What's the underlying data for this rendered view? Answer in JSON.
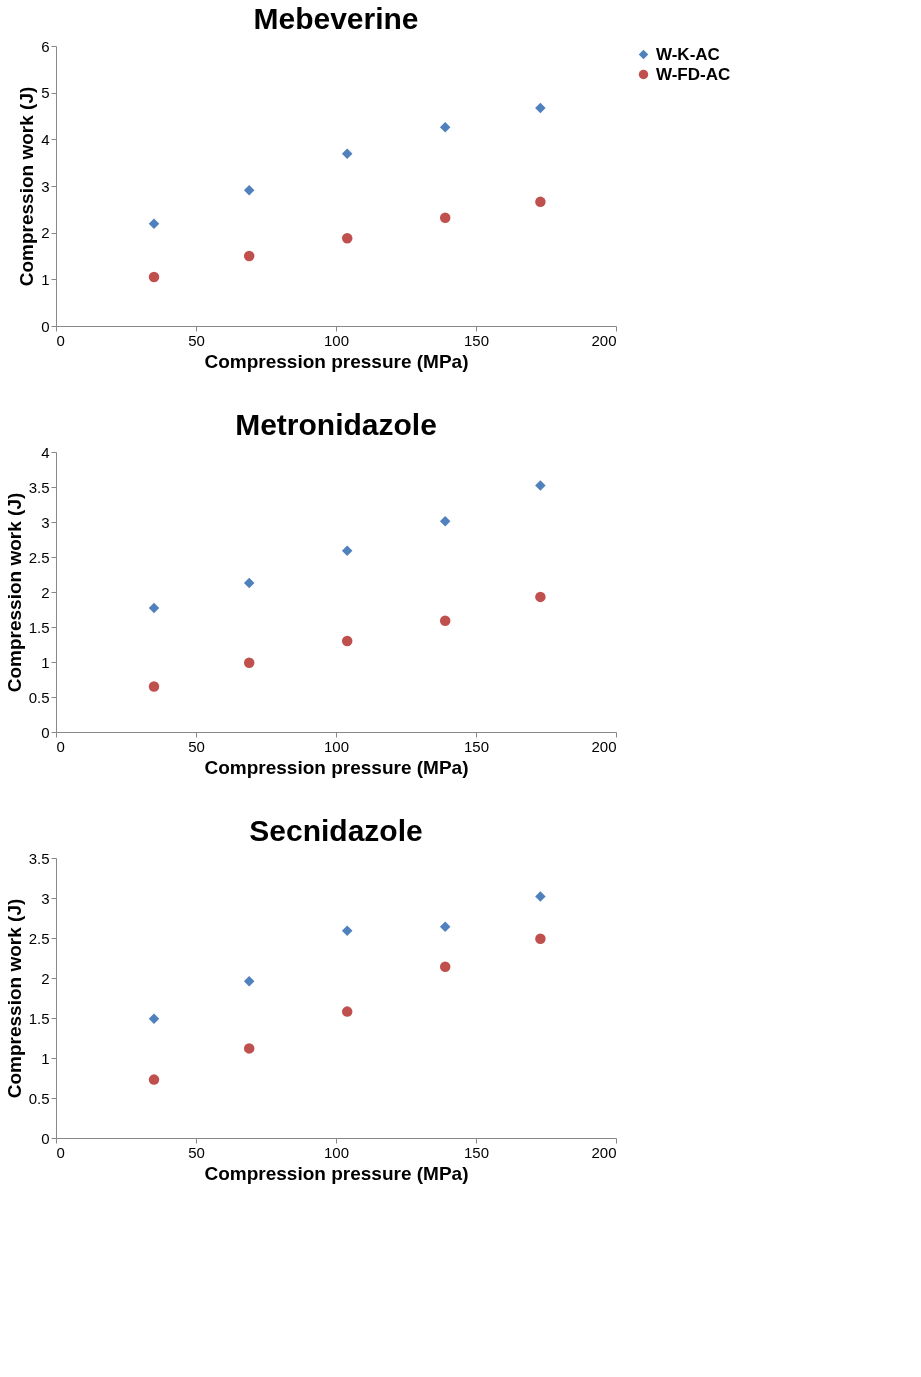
{
  "chart_data": [
    {
      "type": "scatter",
      "title": "Mebeverine",
      "xlabel": "Compression pressure (MPa)",
      "ylabel": "Compression work (J)",
      "x": [
        35,
        69,
        104,
        139,
        173
      ],
      "xlim": [
        0,
        200
      ],
      "xticks": [
        0,
        50,
        100,
        150,
        200
      ],
      "ylim": [
        0,
        6
      ],
      "yticks": [
        0,
        1,
        2,
        3,
        4,
        5,
        6
      ],
      "grid": false,
      "legend": "right",
      "series": [
        {
          "name": "W-K-AC",
          "color": "#4f81bd",
          "marker": "diamond",
          "values": [
            2.19,
            2.91,
            3.69,
            4.26,
            4.67
          ]
        },
        {
          "name": "W-FD-AC",
          "color": "#c0504d",
          "marker": "circle",
          "values": [
            1.05,
            1.5,
            1.88,
            2.32,
            2.66
          ]
        }
      ]
    },
    {
      "type": "scatter",
      "title": "Metronidazole",
      "xlabel": "Compression pressure (MPa)",
      "ylabel": "Compression work (J)",
      "x": [
        35,
        69,
        104,
        139,
        173
      ],
      "xlim": [
        0,
        200
      ],
      "xticks": [
        0,
        50,
        100,
        150,
        200
      ],
      "ylim": [
        0,
        4
      ],
      "yticks": [
        0,
        0.5,
        1,
        1.5,
        2,
        2.5,
        3,
        3.5,
        4
      ],
      "grid": false,
      "legend": "right",
      "series": [
        {
          "name": "W-K-AC",
          "color": "#4f81bd",
          "marker": "diamond",
          "values": [
            1.77,
            2.13,
            2.59,
            3.01,
            3.52
          ]
        },
        {
          "name": "W-FD-AC",
          "color": "#c0504d",
          "marker": "circle",
          "values": [
            0.65,
            0.99,
            1.3,
            1.59,
            1.93
          ]
        }
      ]
    },
    {
      "type": "scatter",
      "title": "Secnidazole",
      "xlabel": "Compression pressure (MPa)",
      "ylabel": "Compression work (J)",
      "x": [
        35,
        69,
        104,
        139,
        173
      ],
      "xlim": [
        0,
        200
      ],
      "xticks": [
        0,
        50,
        100,
        150,
        200
      ],
      "ylim": [
        0,
        3.5
      ],
      "yticks": [
        0,
        0.5,
        1,
        1.5,
        2,
        2.5,
        3,
        3.5
      ],
      "grid": false,
      "legend": "right",
      "series": [
        {
          "name": "W-K-AC",
          "color": "#4f81bd",
          "marker": "diamond",
          "values": [
            1.49,
            1.96,
            2.59,
            2.64,
            3.02
          ]
        },
        {
          "name": "W-FD-AC",
          "color": "#c0504d",
          "marker": "circle",
          "values": [
            0.73,
            1.12,
            1.58,
            2.14,
            2.49
          ]
        }
      ]
    }
  ]
}
